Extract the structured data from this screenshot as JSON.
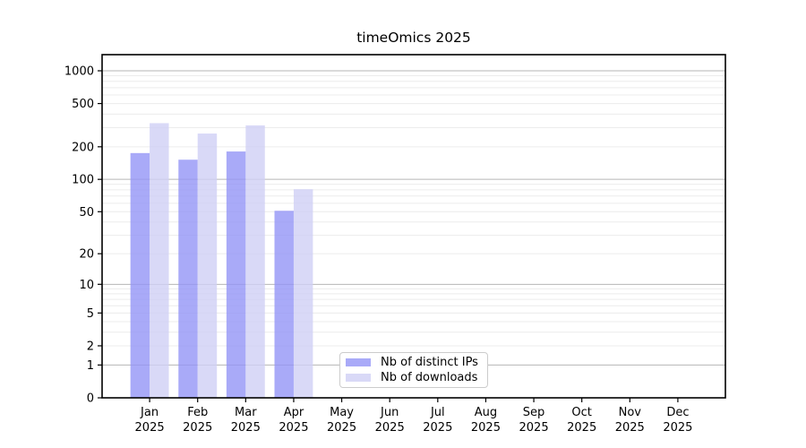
{
  "title": "timeOmics 2025",
  "legend": {
    "items": [
      {
        "label": "Nb of distinct IPs"
      },
      {
        "label": "Nb of downloads"
      }
    ],
    "position": "lower center"
  },
  "chart_data": {
    "type": "bar",
    "title": "timeOmics 2025",
    "x_months": [
      "Jan",
      "Feb",
      "Mar",
      "Apr",
      "May",
      "Jun",
      "Jul",
      "Aug",
      "Sep",
      "Oct",
      "Nov",
      "Dec"
    ],
    "x_year": "2025",
    "y_scale": "log10(1+v)",
    "yticks": [
      0,
      1,
      2,
      5,
      10,
      20,
      50,
      100,
      200,
      500,
      1000
    ],
    "ylim": [
      0,
      1400
    ],
    "grid": "horizontal, minor log lines",
    "legend_position": "lower center",
    "series": [
      {
        "name": "Nb of distinct IPs",
        "color": "#9495f6",
        "alpha": 0.8,
        "values": [
          175,
          152,
          181,
          51,
          0,
          0,
          0,
          0,
          0,
          0,
          0,
          0
        ]
      },
      {
        "name": "Nb of downloads",
        "color": "#cfd0f5",
        "alpha": 0.8,
        "values": [
          330,
          265,
          315,
          81,
          0,
          0,
          0,
          0,
          0,
          0,
          0,
          0
        ]
      }
    ],
    "colors": {
      "grid_decade": "#b6b6b6",
      "grid_minor": "#ececec",
      "axis": "#000000",
      "tick_text": "#000000",
      "legend_border": "#cccccc",
      "background": "#ffffff"
    }
  }
}
